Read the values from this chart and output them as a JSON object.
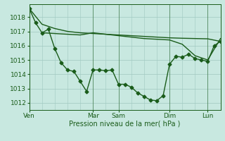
{
  "background_color": "#c8e8e0",
  "grid_color": "#a0c8c0",
  "line_color": "#1a5c1a",
  "marker_style": "D",
  "marker_size": 2.5,
  "line_width": 1.0,
  "xlabel": "Pression niveau de la mer( hPa )",
  "ylim": [
    1011.5,
    1018.9
  ],
  "yticks": [
    1012,
    1013,
    1014,
    1015,
    1016,
    1017,
    1018
  ],
  "xlim": [
    0,
    120
  ],
  "vlines": [
    0,
    40,
    56,
    88,
    112
  ],
  "xtick_positions": [
    0,
    40,
    56,
    88,
    112
  ],
  "xtick_labels": [
    "Ven",
    "Mar",
    "Sam",
    "Dim",
    "Lun"
  ],
  "line1_x": [
    0,
    8,
    16,
    24,
    32,
    40,
    48,
    56,
    64,
    72,
    80,
    88,
    96,
    104,
    112,
    120
  ],
  "line1_y": [
    1018.6,
    1017.5,
    1017.2,
    1017.0,
    1016.9,
    1016.85,
    1016.8,
    1016.75,
    1016.7,
    1016.65,
    1016.6,
    1016.55,
    1016.52,
    1016.5,
    1016.48,
    1016.3
  ],
  "line2_x": [
    0,
    4,
    8,
    12,
    16,
    20,
    24,
    28,
    32,
    36,
    40,
    44,
    48,
    52,
    56,
    60,
    64,
    68,
    72,
    76,
    80,
    84,
    88,
    92,
    96,
    100,
    104,
    108,
    112,
    116,
    120
  ],
  "line2_y": [
    1018.6,
    1017.6,
    1016.9,
    1017.15,
    1015.8,
    1014.8,
    1014.3,
    1014.2,
    1013.5,
    1012.8,
    1014.3,
    1014.3,
    1014.25,
    1014.3,
    1013.3,
    1013.3,
    1013.1,
    1012.7,
    1012.45,
    1012.2,
    1012.15,
    1012.5,
    1014.7,
    1015.25,
    1015.2,
    1015.4,
    1015.1,
    1015.0,
    1014.9,
    1016.0,
    1016.3
  ],
  "line3_x": [
    8,
    16,
    24,
    32,
    40,
    48,
    56,
    64,
    72,
    80,
    88,
    96,
    104,
    112,
    120
  ],
  "line3_y": [
    1016.9,
    1016.85,
    1016.8,
    1016.75,
    1016.9,
    1016.8,
    1016.7,
    1016.6,
    1016.5,
    1016.45,
    1016.4,
    1016.1,
    1015.3,
    1015.0,
    1016.5
  ],
  "fontsize_tick": 6.5,
  "fontsize_label": 7.0
}
